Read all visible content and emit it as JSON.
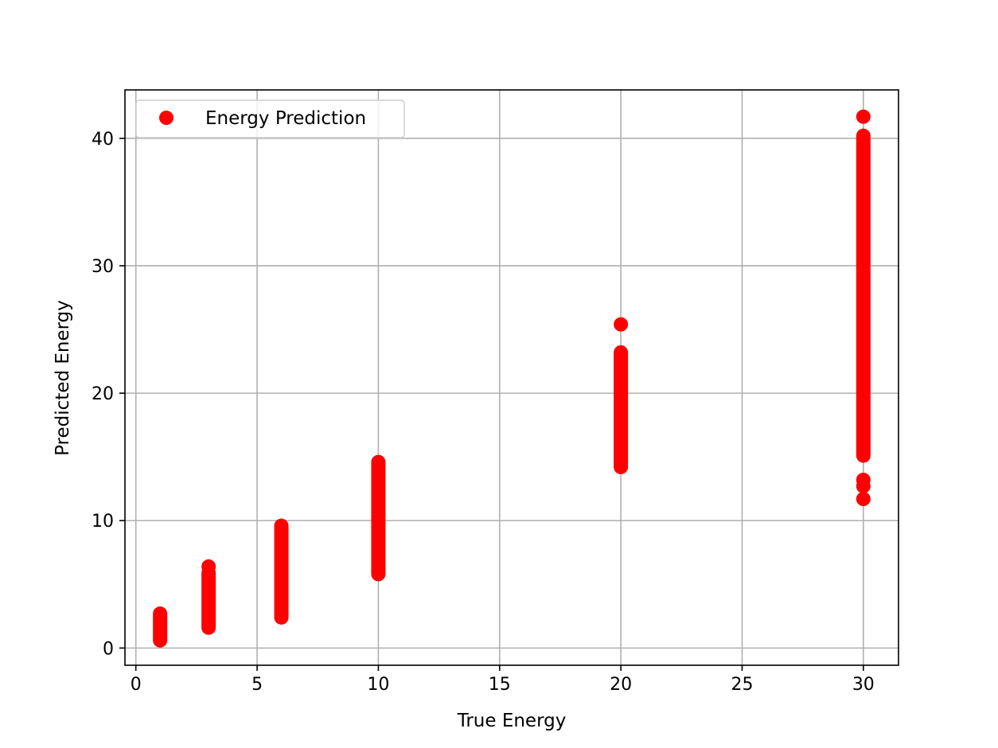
{
  "chart_data": {
    "type": "scatter",
    "title": "",
    "xlabel": "True Energy",
    "ylabel": "Predicted Energy",
    "xlim": [
      -0.45,
      31.45
    ],
    "ylim": [
      -1.35,
      43.8
    ],
    "xticks": [
      0,
      5,
      10,
      15,
      20,
      25,
      30
    ],
    "yticks": [
      0,
      10,
      20,
      30,
      40
    ],
    "xtick_labels": [
      "0",
      "5",
      "10",
      "15",
      "20",
      "25",
      "30"
    ],
    "ytick_labels": [
      "0",
      "10",
      "20",
      "30",
      "40"
    ],
    "grid": true,
    "legend": {
      "position": "top-left"
    },
    "series": [
      {
        "name": "Energy Prediction",
        "color": "#ff0000",
        "marker": "circle",
        "groups": [
          {
            "x": 1,
            "y_min": 0.6,
            "y_max": 2.7,
            "extra_y": []
          },
          {
            "x": 3,
            "y_min": 1.6,
            "y_max": 5.9,
            "extra_y": [
              6.4
            ]
          },
          {
            "x": 6,
            "y_min": 2.4,
            "y_max": 9.6,
            "extra_y": []
          },
          {
            "x": 10,
            "y_min": 5.8,
            "y_max": 14.6,
            "extra_y": []
          },
          {
            "x": 20,
            "y_min": 14.2,
            "y_max": 23.2,
            "extra_y": [
              25.4
            ]
          },
          {
            "x": 30,
            "y_min": 15.1,
            "y_max": 40.2,
            "extra_y": [
              11.7,
              12.7,
              13.2,
              41.7
            ]
          }
        ]
      }
    ]
  }
}
